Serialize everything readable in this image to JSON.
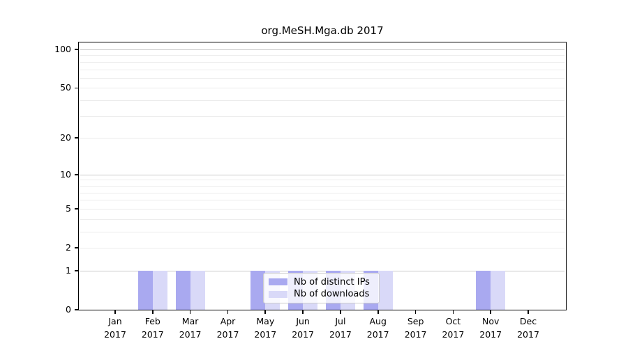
{
  "chart_data": {
    "type": "bar",
    "title": "org.MeSH.Mga.db 2017",
    "year_label": "2017",
    "categories": [
      "Jan",
      "Feb",
      "Mar",
      "Apr",
      "May",
      "Jun",
      "Jul",
      "Aug",
      "Sep",
      "Oct",
      "Nov",
      "Dec"
    ],
    "series": [
      {
        "name": "Nb of distinct IPs",
        "color": "#a9a9f0",
        "values": [
          0,
          1,
          1,
          0,
          1,
          1,
          1,
          1,
          0,
          0,
          1,
          0
        ]
      },
      {
        "name": "Nb of downloads",
        "color": "#d9d9f8",
        "values": [
          0,
          1,
          1,
          0,
          1,
          1,
          1,
          1,
          0,
          0,
          1,
          0
        ]
      }
    ],
    "xlabel": "",
    "ylabel": "",
    "yscale": "log10(1+v)",
    "yticks": [
      0,
      1,
      2,
      5,
      10,
      20,
      50,
      100
    ],
    "ylim": [
      0,
      112
    ],
    "grid": {
      "major_values": [
        1,
        10,
        100
      ],
      "minor_values": [
        2,
        3,
        4,
        5,
        6,
        7,
        8,
        9,
        20,
        30,
        40,
        50,
        60,
        70,
        80,
        90
      ],
      "major_color": "#c9c9c9",
      "minor_color": "#ececec"
    },
    "legend_position": "lower center"
  },
  "colors": {
    "background": "#ffffff",
    "axis": "#000000",
    "text": "#000000"
  }
}
